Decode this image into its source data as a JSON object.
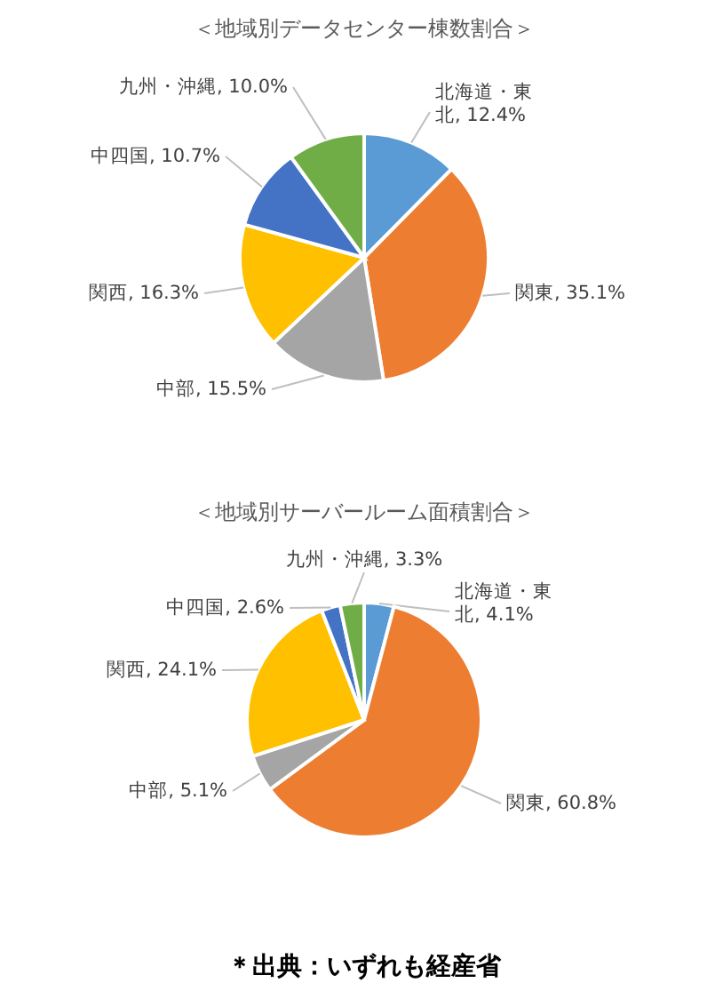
{
  "chart_data": [
    {
      "type": "pie",
      "title": "＜地域別データセンター棟数割合＞",
      "categories": [
        "北海道・東北",
        "関東",
        "中部",
        "関西",
        "中四国",
        "九州・沖縄"
      ],
      "values": [
        12.4,
        35.1,
        15.5,
        16.3,
        10.7,
        10.0
      ],
      "colors": [
        "#5b9bd5",
        "#ed7d31",
        "#a5a5a5",
        "#ffc000",
        "#4472c4",
        "#70ad47"
      ],
      "value_labels": [
        "12.4%",
        "35.1%",
        "15.5%",
        "16.3%",
        "10.7%",
        "10.0%"
      ]
    },
    {
      "type": "pie",
      "title": "＜地域別サーバールーム面積割合＞",
      "categories": [
        "北海道・東北",
        "関東",
        "中部",
        "関西",
        "中四国",
        "九州・沖縄"
      ],
      "values": [
        4.1,
        60.8,
        5.1,
        24.1,
        2.6,
        3.3
      ],
      "colors": [
        "#5b9bd5",
        "#ed7d31",
        "#a5a5a5",
        "#ffc000",
        "#4472c4",
        "#70ad47"
      ],
      "value_labels": [
        "4.1%",
        "60.8%",
        "5.1%",
        "24.1%",
        "2.6%",
        "3.3%"
      ],
      "annotations": [
        "＊出典：いずれも経産省"
      ]
    }
  ]
}
